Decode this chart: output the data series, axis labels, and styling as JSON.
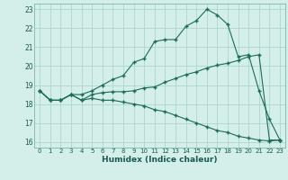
{
  "xlabel": "Humidex (Indice chaleur)",
  "background_color": "#d4eeea",
  "grid_color": "#aed4d0",
  "line_color": "#1a6b5a",
  "xlim": [
    -0.5,
    23.5
  ],
  "ylim": [
    15.7,
    23.3
  ],
  "yticks": [
    16,
    17,
    18,
    19,
    20,
    21,
    22,
    23
  ],
  "xticks": [
    0,
    1,
    2,
    3,
    4,
    5,
    6,
    7,
    8,
    9,
    10,
    11,
    12,
    13,
    14,
    15,
    16,
    17,
    18,
    19,
    20,
    21,
    22,
    23
  ],
  "line1_x": [
    0,
    1,
    2,
    3,
    4,
    5,
    6,
    7,
    8,
    9,
    10,
    11,
    12,
    13,
    14,
    15,
    16,
    17,
    18,
    19,
    20,
    21,
    22,
    23
  ],
  "line1_y": [
    18.7,
    18.2,
    18.2,
    18.5,
    18.5,
    18.7,
    19.0,
    19.3,
    19.5,
    20.2,
    20.4,
    21.3,
    21.4,
    21.4,
    22.1,
    22.4,
    23.0,
    22.7,
    22.2,
    20.5,
    20.6,
    18.7,
    17.2,
    16.1
  ],
  "line2_x": [
    0,
    1,
    2,
    3,
    4,
    5,
    6,
    7,
    8,
    9,
    10,
    11,
    12,
    13,
    14,
    15,
    16,
    17,
    18,
    19,
    20,
    21,
    22,
    23
  ],
  "line2_y": [
    18.7,
    18.2,
    18.2,
    18.5,
    18.2,
    18.5,
    18.6,
    18.65,
    18.65,
    18.7,
    18.85,
    18.9,
    19.15,
    19.35,
    19.55,
    19.7,
    19.9,
    20.05,
    20.15,
    20.3,
    20.5,
    20.6,
    16.1,
    16.1
  ],
  "line3_x": [
    0,
    1,
    2,
    3,
    4,
    5,
    6,
    7,
    8,
    9,
    10,
    11,
    12,
    13,
    14,
    15,
    16,
    17,
    18,
    19,
    20,
    21,
    22,
    23
  ],
  "line3_y": [
    18.7,
    18.2,
    18.2,
    18.5,
    18.2,
    18.3,
    18.2,
    18.2,
    18.1,
    18.0,
    17.9,
    17.7,
    17.6,
    17.4,
    17.2,
    17.0,
    16.8,
    16.6,
    16.5,
    16.3,
    16.2,
    16.1,
    16.05,
    16.1
  ]
}
